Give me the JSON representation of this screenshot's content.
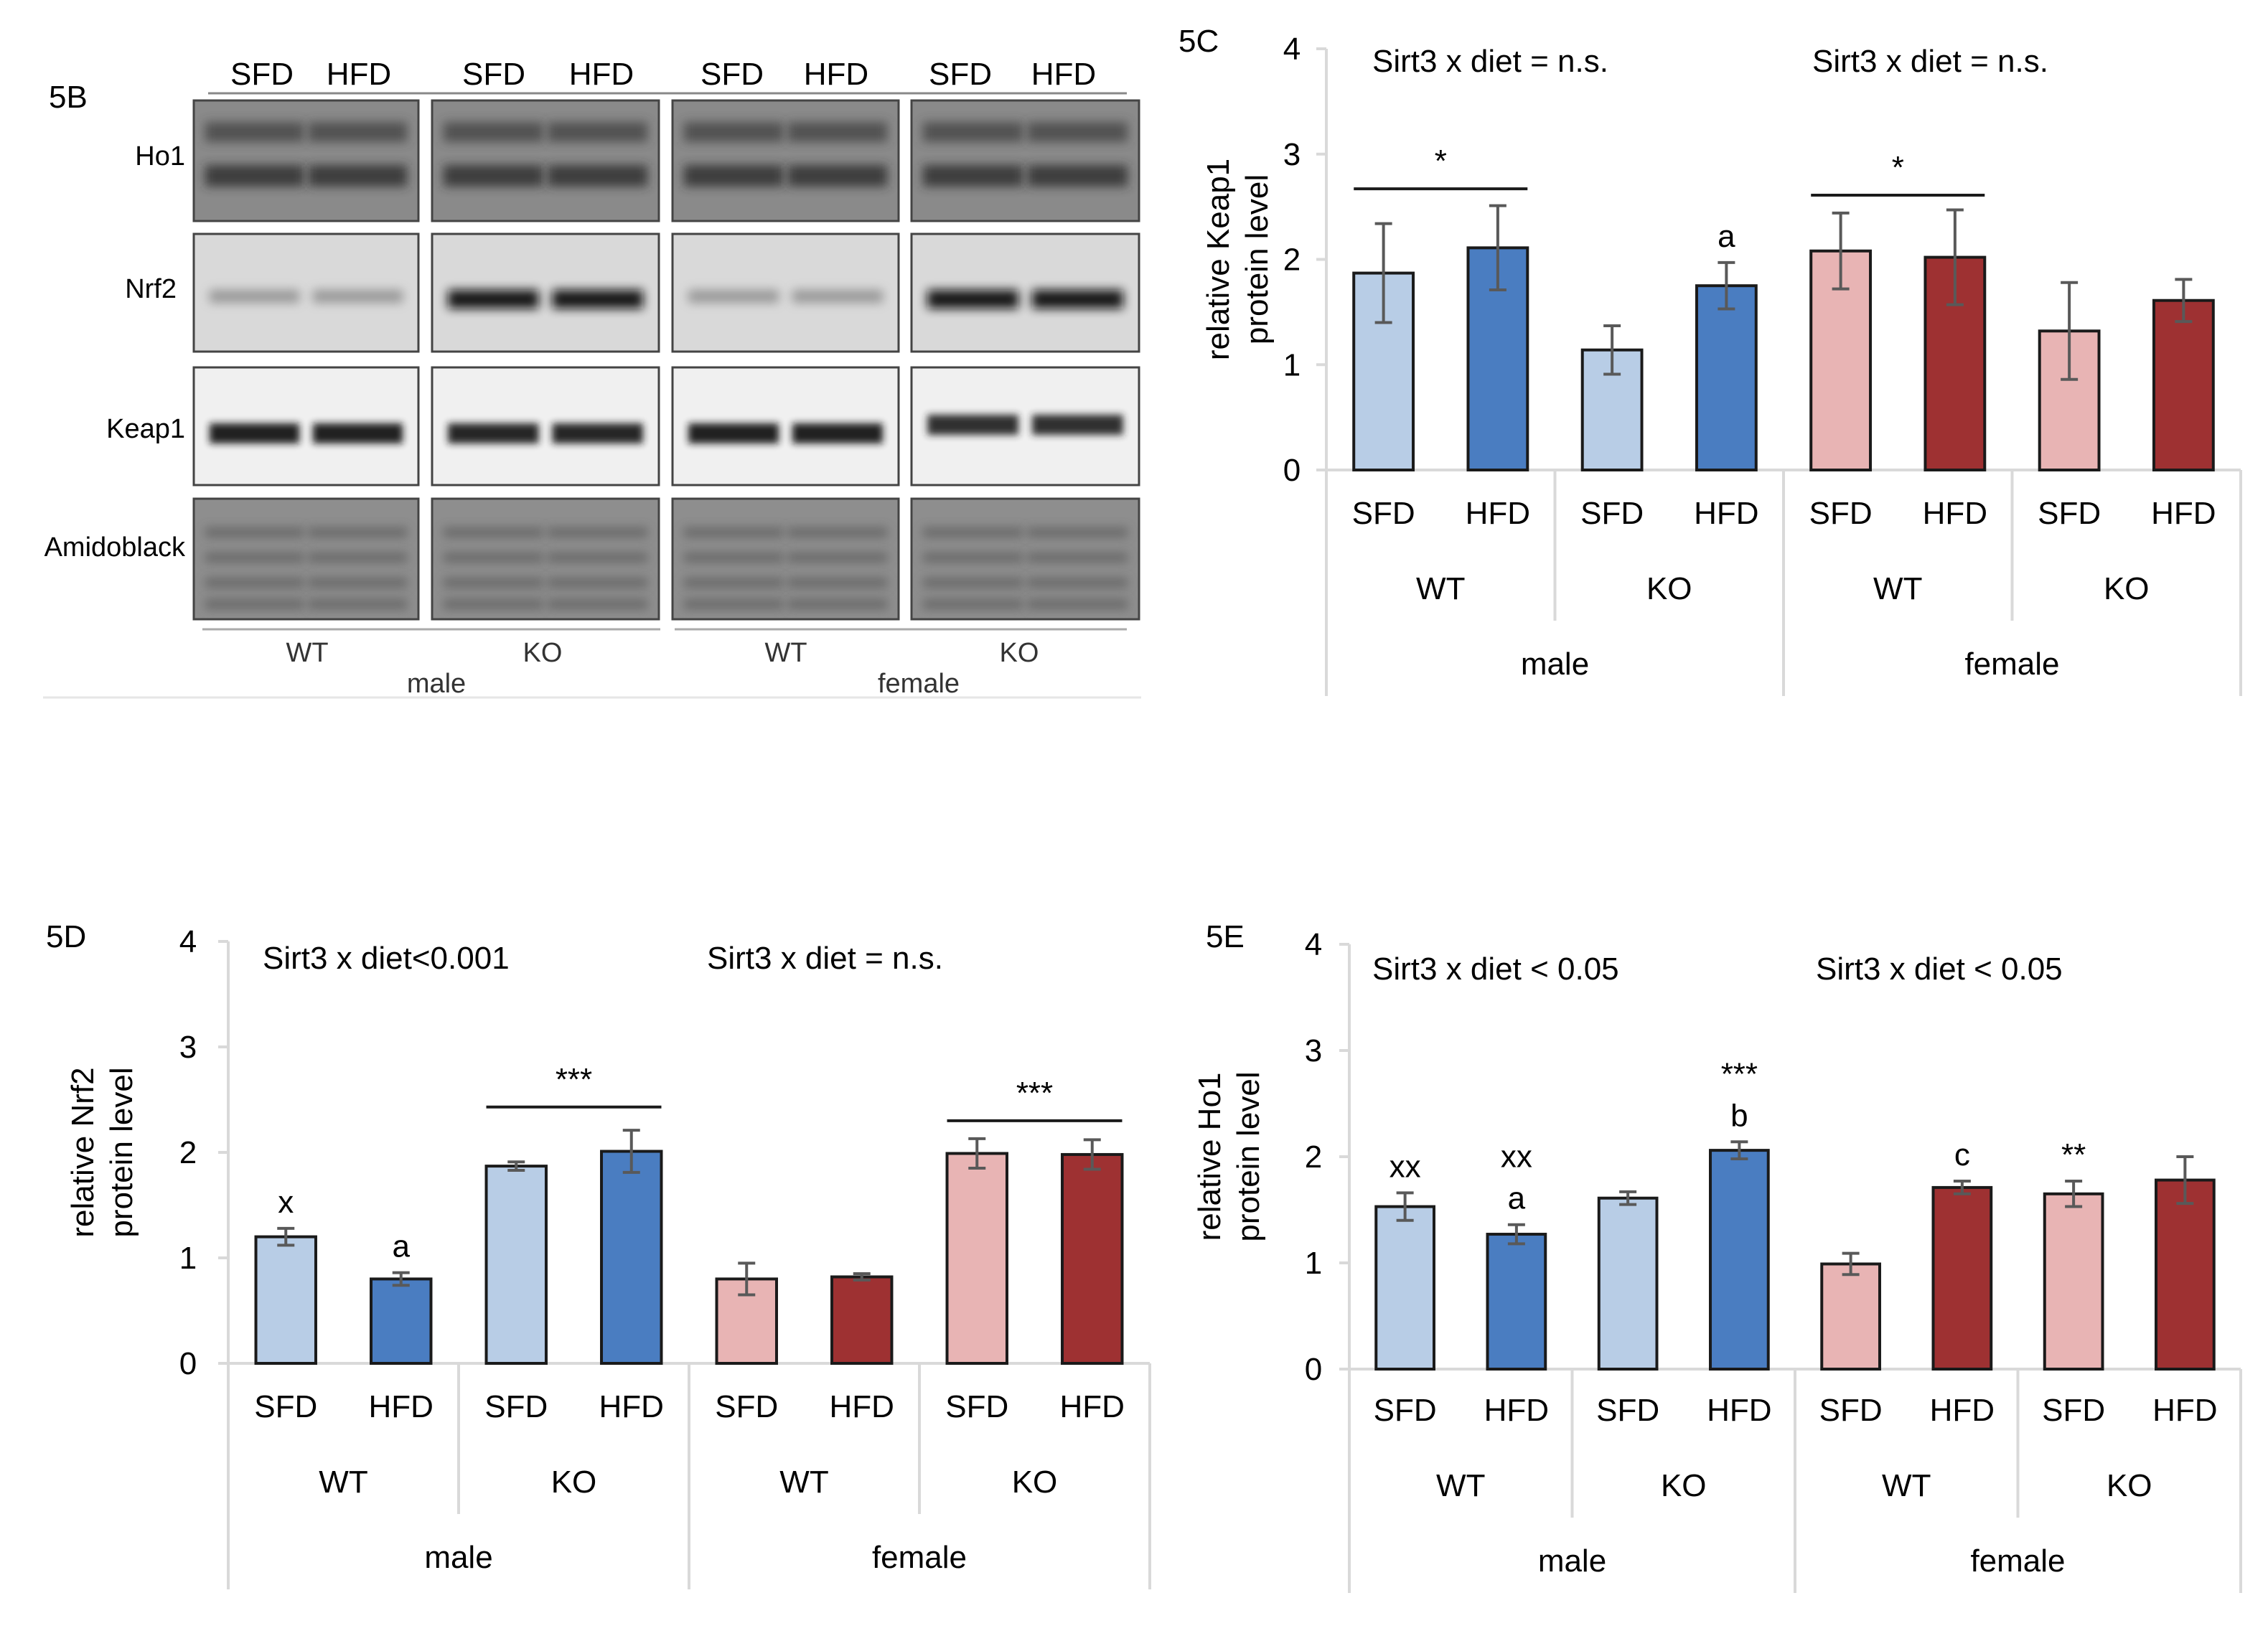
{
  "western_blot": {
    "panel_label": "5B",
    "diet_headers": [
      "SFD",
      "HFD",
      "SFD",
      "HFD",
      "SFD",
      "HFD",
      "SFD",
      "HFD"
    ],
    "rows": [
      "Ho1",
      "Nrf2",
      "Keap1",
      "Amidoblack"
    ],
    "genotype_labels": [
      "WT",
      "KO",
      "WT",
      "KO"
    ],
    "sex_labels": [
      "male",
      "female"
    ]
  },
  "colors": {
    "wt_sfd": "#b8cde6",
    "ko_hfd": "#4a7dc1",
    "female_sfd": "#e8b4b4",
    "female_hfd": "#9e3132",
    "axis": "#d9d9d9",
    "text": "#1a1a1a"
  },
  "chart_data": [
    {
      "panel_label": "5C",
      "type": "bar",
      "ylabel": "relative Keap1 protein level",
      "ylim": [
        0,
        4
      ],
      "yticks": [
        0,
        1,
        2,
        3,
        4
      ],
      "categories": [
        "SFD",
        "HFD",
        "SFD",
        "HFD",
        "SFD",
        "HFD",
        "SFD",
        "HFD"
      ],
      "groups": [
        "WT",
        "KO",
        "WT",
        "KO"
      ],
      "sexes": [
        "male",
        "female"
      ],
      "values": [
        1.87,
        2.11,
        1.14,
        1.75,
        2.08,
        2.02,
        1.32,
        1.61
      ],
      "errors": [
        0.47,
        0.4,
        0.23,
        0.22,
        0.36,
        0.45,
        0.46,
        0.2
      ],
      "interaction_labels": [
        "Sirt3 x diet = n.s.",
        "Sirt3 x diet = n.s."
      ],
      "bar_labels": [
        "",
        "",
        "",
        "a",
        "",
        "",
        "",
        ""
      ],
      "brackets": [
        {
          "from": 0,
          "to": 1,
          "label": "*",
          "y": 2.67
        },
        {
          "from": 4,
          "to": 5,
          "label": "*",
          "y": 2.61
        }
      ]
    },
    {
      "panel_label": "5D",
      "type": "bar",
      "ylabel": "relative Nrf2 protein level",
      "ylim": [
        0,
        4
      ],
      "yticks": [
        0,
        1,
        2,
        3,
        4
      ],
      "categories": [
        "SFD",
        "HFD",
        "SFD",
        "HFD",
        "SFD",
        "HFD",
        "SFD",
        "HFD"
      ],
      "groups": [
        "WT",
        "KO",
        "WT",
        "KO"
      ],
      "sexes": [
        "male",
        "female"
      ],
      "values": [
        1.2,
        0.8,
        1.87,
        2.01,
        0.8,
        0.82,
        1.99,
        1.98
      ],
      "errors": [
        0.08,
        0.06,
        0.04,
        0.2,
        0.15,
        0.03,
        0.14,
        0.14
      ],
      "interaction_labels": [
        "Sirt3 x diet<0.001",
        "Sirt3 x diet = n.s."
      ],
      "bar_labels": [
        "x",
        "a",
        "",
        "",
        "",
        "",
        "",
        ""
      ],
      "brackets": [
        {
          "from": 2,
          "to": 3,
          "label": "***",
          "y": 2.43
        },
        {
          "from": 6,
          "to": 7,
          "label": "***",
          "y": 2.3
        }
      ]
    },
    {
      "panel_label": "5E",
      "type": "bar",
      "ylabel": "relative Ho1 protein level",
      "ylim": [
        0,
        4
      ],
      "yticks": [
        0,
        1,
        2,
        3,
        4
      ],
      "categories": [
        "SFD",
        "HFD",
        "SFD",
        "HFD",
        "SFD",
        "HFD",
        "SFD",
        "HFD"
      ],
      "groups": [
        "WT",
        "KO",
        "WT",
        "KO"
      ],
      "sexes": [
        "male",
        "female"
      ],
      "values": [
        1.53,
        1.27,
        1.61,
        2.06,
        0.99,
        1.71,
        1.65,
        1.78
      ],
      "errors": [
        0.13,
        0.09,
        0.06,
        0.08,
        0.1,
        0.06,
        0.12,
        0.22
      ],
      "interaction_labels": [
        "Sirt3 x diet < 0.05",
        "Sirt3 x diet < 0.05"
      ],
      "bar_labels": [
        "xx",
        "xx\na",
        "",
        "***\nb",
        "",
        "c",
        "**",
        ""
      ],
      "brackets": []
    }
  ]
}
